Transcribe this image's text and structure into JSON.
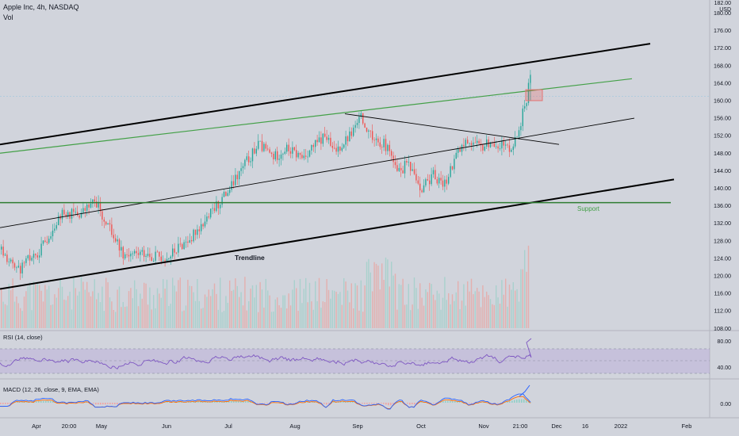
{
  "header": {
    "title": "Apple Inc, 4h, NASDAQ",
    "volume_label": "Vol"
  },
  "price_axis": {
    "currency": "USD",
    "top_label": "182.00",
    "ticks": [
      "180.00",
      "176.00",
      "172.00",
      "168.00",
      "164.00",
      "160.00",
      "156.00",
      "152.00",
      "148.00",
      "144.00",
      "140.00",
      "136.00",
      "132.00",
      "128.00",
      "124.00",
      "120.00",
      "116.00",
      "112.00",
      "108.00"
    ]
  },
  "time_axis": {
    "labels": [
      "Apr",
      "20:00",
      "May",
      "Jun",
      "Jul",
      "Aug",
      "Sep",
      "Oct",
      "Nov",
      "21:00",
      "Dec",
      "16",
      "2022",
      "Feb"
    ]
  },
  "annotations": {
    "trendline": "Trendline",
    "support": "Support"
  },
  "rsi": {
    "label": "RSI (14, close)",
    "ticks": [
      "80.00",
      "40.00"
    ]
  },
  "macd": {
    "label": "MACD (12, 26, close, 9, EMA, EMA)",
    "ticks": [
      "0.00"
    ]
  },
  "colors": {
    "background": "#d1d4dc",
    "up_candle": "#26a69a",
    "down_candle": "#ef5350",
    "support_line": "#2e7d32",
    "channel_line": "#000000",
    "green_line": "#43a047",
    "rsi_line": "#7e57c2",
    "rsi_band": "#b39ddb",
    "macd_line": "#2962ff",
    "signal_line": "#ff6d00",
    "text": "#131722",
    "support_text": "#43a047"
  },
  "chart_data": {
    "type": "candlestick",
    "symbol": "Apple Inc",
    "interval": "4h",
    "exchange": "NASDAQ",
    "ylim": [
      106,
      182
    ],
    "price_path": [
      [
        0,
        126
      ],
      [
        20,
        121
      ],
      [
        50,
        126
      ],
      [
        75,
        134
      ],
      [
        100,
        134
      ],
      [
        120,
        137
      ],
      [
        140,
        130
      ],
      [
        155,
        125
      ],
      [
        180,
        125
      ],
      [
        210,
        124
      ],
      [
        235,
        128
      ],
      [
        260,
        133
      ],
      [
        290,
        140
      ],
      [
        310,
        146
      ],
      [
        325,
        150
      ],
      [
        345,
        147
      ],
      [
        360,
        149
      ],
      [
        380,
        147
      ],
      [
        410,
        152
      ],
      [
        420,
        148
      ],
      [
        440,
        152
      ],
      [
        455,
        156
      ],
      [
        470,
        152
      ],
      [
        490,
        149
      ],
      [
        500,
        143
      ],
      [
        515,
        146
      ],
      [
        530,
        140
      ],
      [
        545,
        143
      ],
      [
        560,
        141
      ],
      [
        575,
        148
      ],
      [
        590,
        151
      ],
      [
        605,
        149
      ],
      [
        620,
        151
      ],
      [
        640,
        149
      ],
      [
        650,
        151
      ],
      [
        660,
        158
      ],
      [
        665,
        162
      ],
      [
        668,
        165
      ]
    ],
    "channel_upper": [
      [
        0,
        150
      ],
      [
        820,
        173
      ]
    ],
    "channel_lower": [
      [
        0,
        117
      ],
      [
        850,
        142
      ]
    ],
    "green_line": [
      [
        0,
        148
      ],
      [
        797,
        165
      ]
    ],
    "mid_rising_line": [
      [
        0,
        131
      ],
      [
        800,
        156
      ]
    ],
    "descending_line": [
      [
        435,
        157
      ],
      [
        705,
        150
      ]
    ],
    "support_level": 136.7,
    "highlight_box": {
      "x_from": 663,
      "x_to": 684,
      "price_from": 160,
      "price_to": 162.5
    },
    "current_price_line": 161
  }
}
